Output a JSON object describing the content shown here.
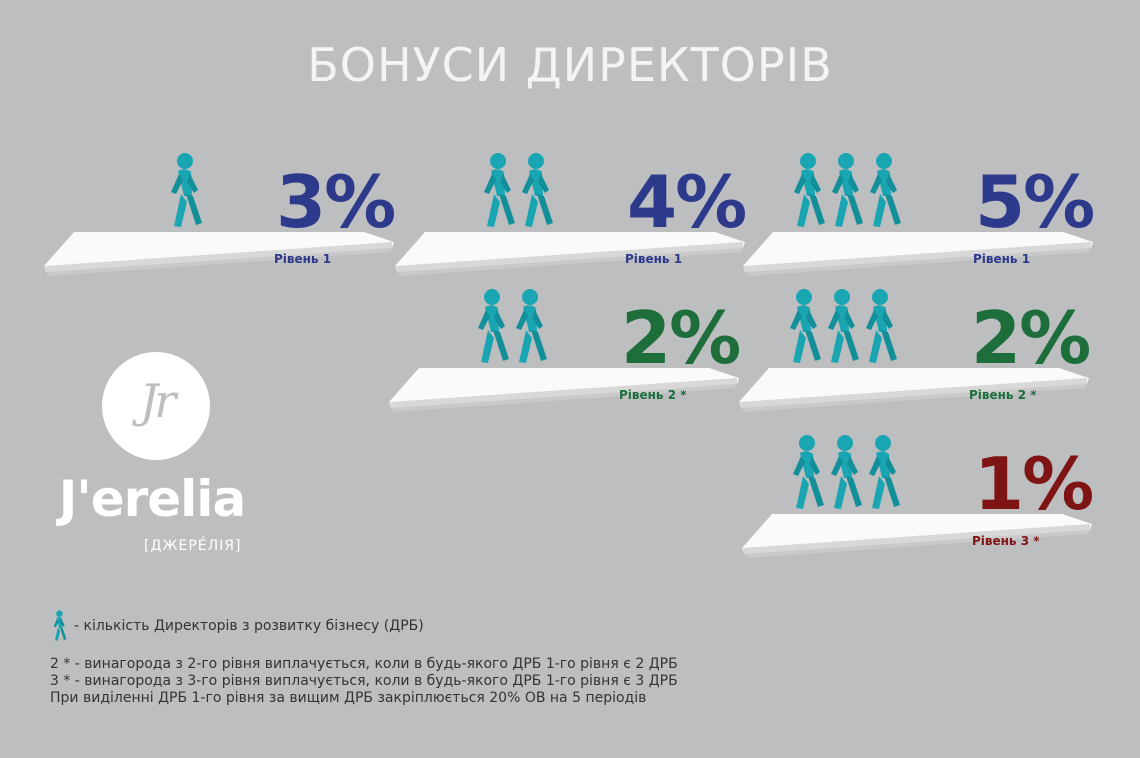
{
  "title": "БОНУСИ ДИРЕКТОРІВ",
  "colors": {
    "person": "#1aa5b2",
    "level1": "#2d3a8c",
    "level2": "#1e6e3c",
    "level3": "#7e1414",
    "background": "#bdbec0"
  },
  "cards": [
    {
      "percent": "3%",
      "level": "Рівень 1",
      "people": 1,
      "tier": 1
    },
    {
      "percent": "4%",
      "level": "Рівень 1",
      "people": 2,
      "tier": 1
    },
    {
      "percent": "5%",
      "level": "Рівень 1",
      "people": 3,
      "tier": 1
    },
    {
      "percent": "2%",
      "level": "Рівень 2 *",
      "people": 2,
      "tier": 2
    },
    {
      "percent": "2%",
      "level": "Рівень 2 *",
      "people": 3,
      "tier": 2
    },
    {
      "percent": "1%",
      "level": "Рівень 3 *",
      "people": 3,
      "tier": 3
    }
  ],
  "logo": {
    "monogram": "Jr",
    "wordmark": "J'erelia",
    "subtitle": "[ДЖЕРЕ́ЛІЯ]"
  },
  "legend": {
    "icon": "walking-person-icon",
    "text": "- кількість Директорів з розвитку бізнесу (ДРБ)"
  },
  "notes": [
    "2 * - винагорода з 2-го рівня виплачується, коли в будь-якого ДРБ 1-го рівня є 2 ДРБ",
    "3 * - винагорода з 3-го рівня виплачується, коли в будь-якого ДРБ 1-го рівня є 3 ДРБ",
    "При виділенні ДРБ 1-го рівня за вищим ДРБ закріплюється 20% ОВ на 5 періодів"
  ]
}
